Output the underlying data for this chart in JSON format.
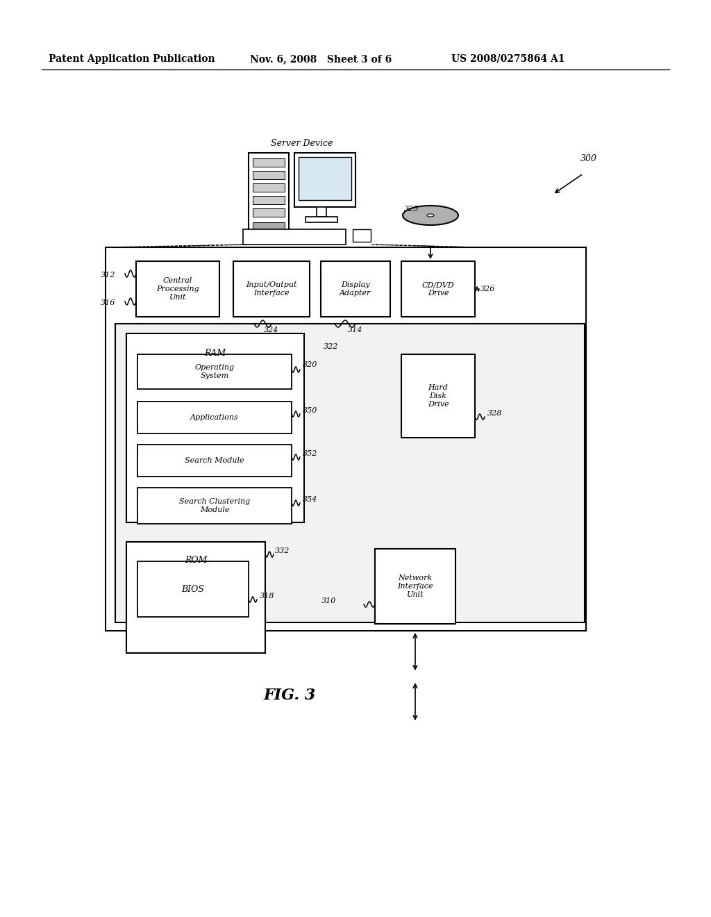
{
  "bg_color": "#ffffff",
  "header_left": "Patent Application Publication",
  "header_mid": "Nov. 6, 2008   Sheet 3 of 6",
  "header_right": "US 2008/0275864 A1",
  "fig_label": "FIG. 3",
  "label_300": "300",
  "label_312": "312",
  "label_316": "316",
  "label_320": "320",
  "label_322": "322",
  "label_324": "324",
  "label_314": "314",
  "label_326": "326",
  "label_328": "328",
  "label_310": "310",
  "label_332": "332",
  "label_318": "318",
  "label_350": "350",
  "label_352": "352",
  "label_354": "354",
  "label_325": "325",
  "server_label": "Server Device",
  "cpu_label": "Central\nProcessing\nUnit",
  "io_label": "Input/Output\nInterface",
  "display_label": "Display\nAdapter",
  "cddvd_label": "CD/DVD\nDrive",
  "ram_label": "RAM",
  "os_label": "Operating\nSystem",
  "app_label": "Applications",
  "search_label": "Search Module",
  "cluster_label": "Search Clustering\nModule",
  "hdd_label": "Hard\nDisk\nDrive",
  "rom_label": "ROM",
  "bios_label": "BIOS",
  "niu_label": "Network\nInterface\nUnit"
}
